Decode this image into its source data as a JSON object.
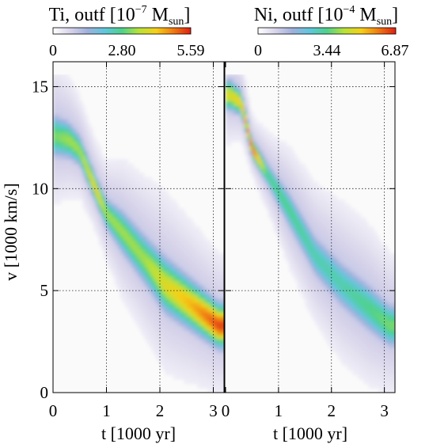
{
  "figure": {
    "ylabel": "v [1000 km/s]",
    "xlabel": "t [1000 yr]"
  },
  "colormap": [
    "#ffffff",
    "#d8d4ea",
    "#9fb0dc",
    "#5fc7dc",
    "#4fd18d",
    "#b8e23a",
    "#f5d019",
    "#f07a12",
    "#dd1f12"
  ],
  "chart_data": [
    {
      "type": "heatmap",
      "panel": "left",
      "title_parts": {
        "element": "Ti",
        "qty": ", outf [10",
        "exp": "−7",
        "unit": " M",
        "sub": "sun",
        "close": "]"
      },
      "colorbar": {
        "min": 0,
        "max": 5.59,
        "tick_labels": [
          "0",
          "2.80",
          "5.59"
        ]
      },
      "xlabel": "t [1000 yr]",
      "ylabel": "v [1000 km/s]",
      "xlim": [
        0,
        3.2
      ],
      "ylim": [
        0,
        15.6
      ],
      "x_ticks": [
        0,
        1,
        2,
        3
      ],
      "x_tick_labels": [
        "0",
        "1",
        "2",
        "3"
      ],
      "y_ticks": [
        0,
        5,
        10,
        15
      ],
      "y_tick_labels": [
        "0",
        "5",
        "10",
        "15"
      ],
      "grid": true,
      "ridge": [
        {
          "t": 0.05,
          "v": 12.6,
          "w": 0.7,
          "i": 0.55
        },
        {
          "t": 0.3,
          "v": 12.4,
          "w": 0.6,
          "i": 0.6
        },
        {
          "t": 0.5,
          "v": 11.9,
          "w": 0.5,
          "i": 0.6
        },
        {
          "t": 0.8,
          "v": 10.0,
          "w": 0.45,
          "i": 0.75
        },
        {
          "t": 1.0,
          "v": 8.8,
          "w": 0.5,
          "i": 0.6
        },
        {
          "t": 1.3,
          "v": 7.9,
          "w": 0.7,
          "i": 0.6
        },
        {
          "t": 1.7,
          "v": 6.6,
          "w": 0.8,
          "i": 0.6
        },
        {
          "t": 2.1,
          "v": 5.3,
          "w": 0.9,
          "i": 0.7
        },
        {
          "t": 2.6,
          "v": 4.3,
          "w": 0.8,
          "i": 0.8
        },
        {
          "t": 3.1,
          "v": 3.3,
          "w": 0.7,
          "i": 0.95
        }
      ]
    },
    {
      "type": "heatmap",
      "panel": "right",
      "title_parts": {
        "element": "Ni",
        "qty": ", outf [10",
        "exp": "−4",
        "unit": " M",
        "sub": "sun",
        "close": "]"
      },
      "colorbar": {
        "min": 0,
        "max": 6.87,
        "tick_labels": [
          "0",
          "3.44",
          "6.87"
        ]
      },
      "xlabel": "t [1000 yr]",
      "xlim": [
        0,
        3.2
      ],
      "ylim": [
        0,
        15.6
      ],
      "x_ticks": [
        0,
        1,
        2,
        3
      ],
      "x_tick_labels": [
        "0",
        "1",
        "2",
        "3"
      ],
      "y_ticks": [
        0,
        5,
        10,
        15
      ],
      "grid": true,
      "ridge": [
        {
          "t": 0.1,
          "v": 14.6,
          "w": 0.5,
          "i": 0.7
        },
        {
          "t": 0.3,
          "v": 14.2,
          "w": 0.4,
          "i": 0.75
        },
        {
          "t": 0.5,
          "v": 12.0,
          "w": 0.3,
          "i": 0.95
        },
        {
          "t": 0.8,
          "v": 10.7,
          "w": 0.4,
          "i": 0.5
        },
        {
          "t": 1.2,
          "v": 9.0,
          "w": 0.6,
          "i": 0.5
        },
        {
          "t": 1.7,
          "v": 6.7,
          "w": 0.7,
          "i": 0.45
        },
        {
          "t": 2.2,
          "v": 5.3,
          "w": 0.8,
          "i": 0.45
        },
        {
          "t": 2.7,
          "v": 4.2,
          "w": 0.8,
          "i": 0.5
        },
        {
          "t": 3.1,
          "v": 3.3,
          "w": 0.7,
          "i": 0.55
        }
      ]
    }
  ]
}
